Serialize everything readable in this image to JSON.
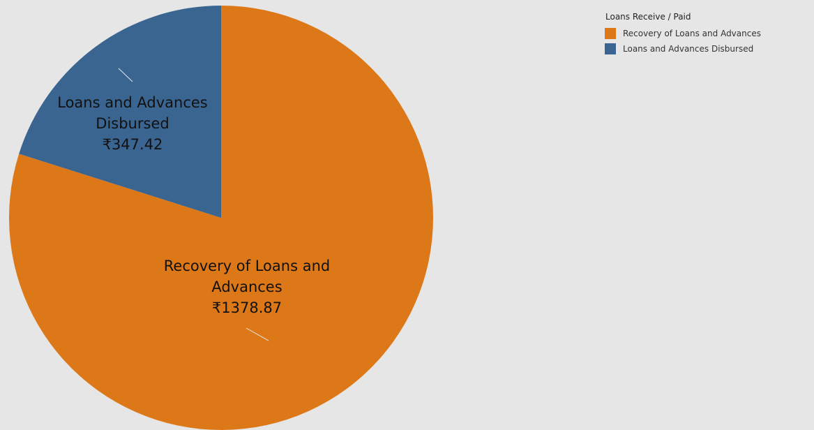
{
  "chart_data": {
    "type": "pie",
    "currency_symbol": "₹",
    "start_angle_deg": 0,
    "direction": "clockwise",
    "slices": [
      {
        "name": "Recovery of Loans and Advances",
        "label_lines": [
          "Recovery of Loans and",
          "Advances",
          "₹1378.87"
        ],
        "value": 1378.87,
        "color": "#dd7818"
      },
      {
        "name": "Loans and Advances Disbursed",
        "label_lines": [
          "Loans and Advances",
          "Disbursed",
          "₹347.42"
        ],
        "value": 347.42,
        "color": "#3a6591"
      }
    ],
    "legend": {
      "title": "Loans Receive / Paid",
      "placement": "top-right",
      "items": [
        {
          "label": "Recovery of Loans and Advances",
          "color": "#dd7818"
        },
        {
          "label": "Loans and Advances Disbursed",
          "color": "#3a6591"
        }
      ]
    }
  },
  "colors": {
    "background": "#e6e6e6",
    "label_text": "#111111",
    "leader_line": "#e8e8e8"
  }
}
